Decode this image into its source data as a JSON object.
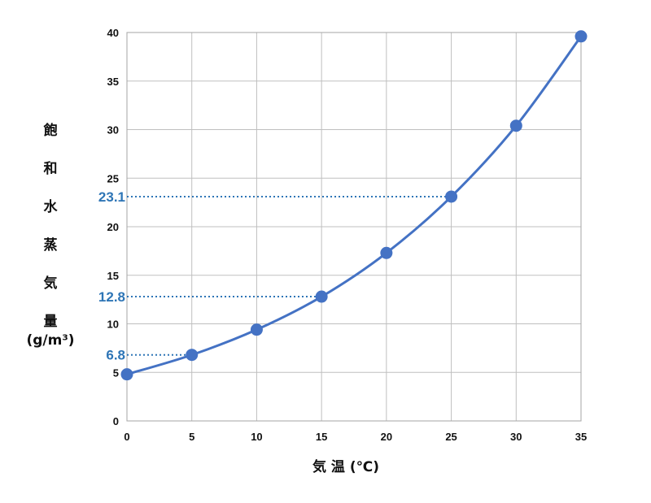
{
  "chart_data": {
    "type": "line",
    "x": [
      0,
      5,
      10,
      15,
      20,
      25,
      30,
      35
    ],
    "series": [
      {
        "values": [
          4.8,
          6.8,
          9.4,
          12.8,
          17.3,
          23.1,
          30.4,
          39.6
        ]
      }
    ],
    "xlabel": "気 温 (℃)",
    "ylabel_chars": [
      "飽",
      "和",
      "水",
      "蒸",
      "気",
      "量"
    ],
    "yunit": "(g/m³)",
    "xlim": [
      0,
      35
    ],
    "ylim": [
      0,
      40
    ],
    "xticks": [
      "0",
      "5",
      "10",
      "15",
      "20",
      "25",
      "30",
      "35"
    ],
    "yticks": [
      "0",
      "5",
      "10",
      "15",
      "20",
      "25",
      "30",
      "35",
      "40"
    ],
    "grid": true,
    "annotations": [
      {
        "x": 5,
        "y": 6.8,
        "text": "6.8"
      },
      {
        "x": 15,
        "y": 12.8,
        "text": "12.8"
      },
      {
        "x": 25,
        "y": 23.1,
        "text": "23.1"
      }
    ],
    "colors": {
      "line": "#4472c4",
      "marker": "#4472c4",
      "annotation": "#2e75b6",
      "grid": "#bfbfbf"
    }
  }
}
